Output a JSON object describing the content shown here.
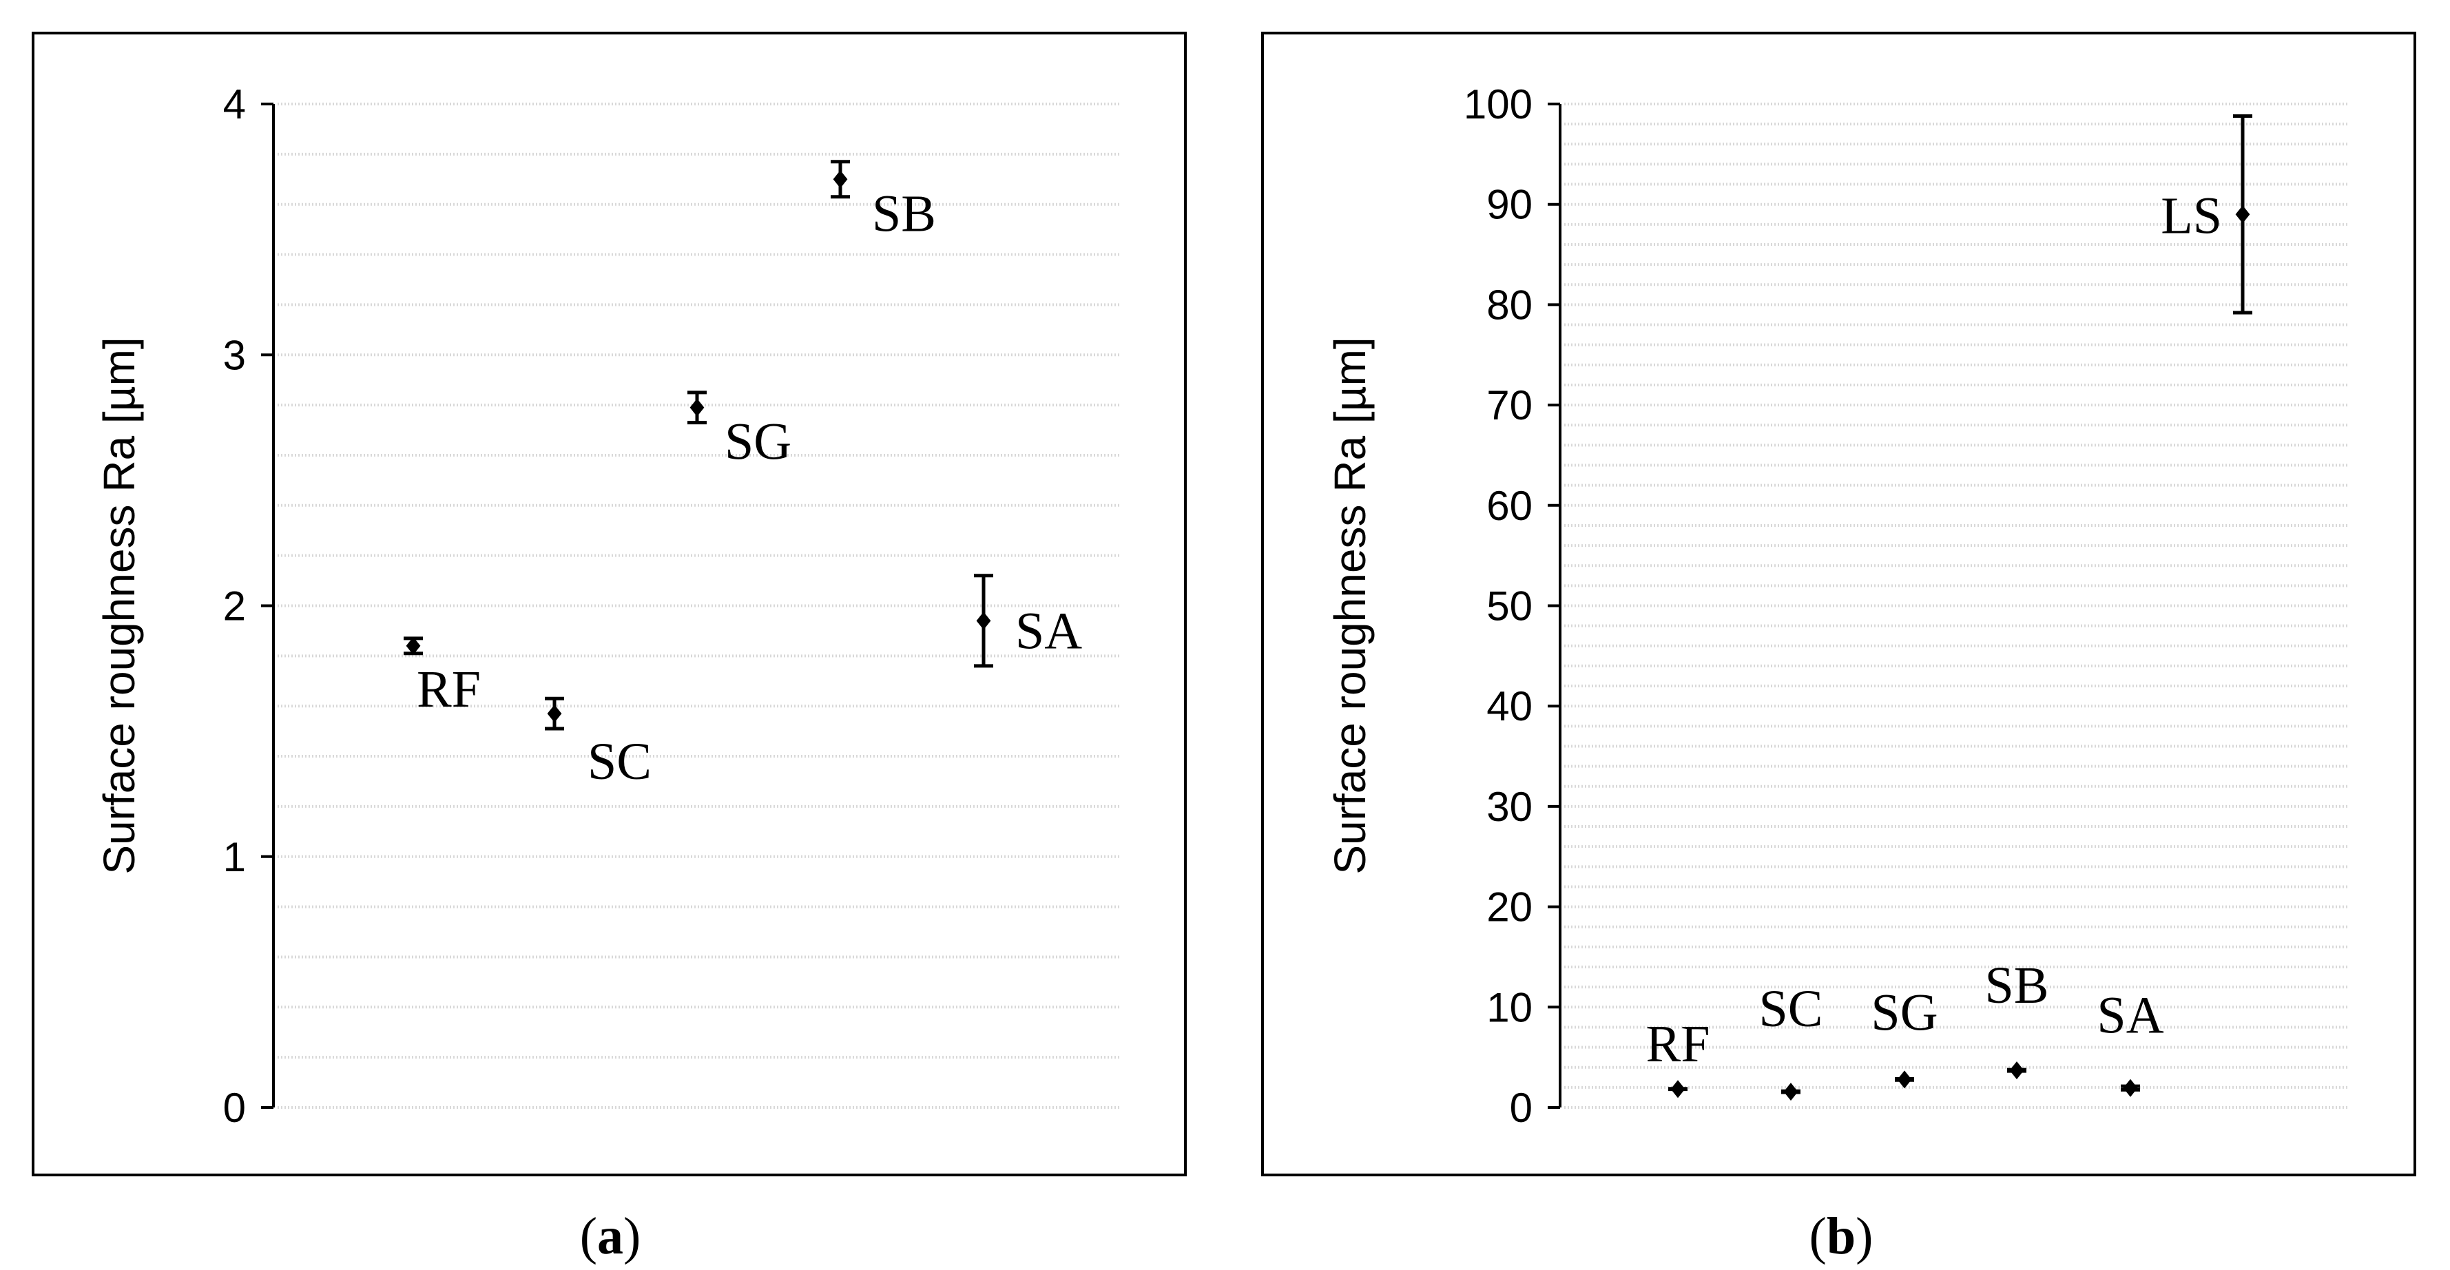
{
  "chart_data": [
    {
      "type": "scatter",
      "panel": "a",
      "caption": {
        "open": "(",
        "letter": "a",
        "close": ")"
      },
      "ylabel": "Surface roughness Ra [µm]",
      "ylim": [
        0,
        4
      ],
      "yticks": [
        "0",
        "1",
        "2",
        "3",
        "4"
      ],
      "minor_grid": true,
      "points": [
        {
          "label": "RF",
          "y": 1.84,
          "err": 0.03
        },
        {
          "label": "SC",
          "y": 1.57,
          "err": 0.06
        },
        {
          "label": "SG",
          "y": 2.79,
          "err": 0.06
        },
        {
          "label": "SB",
          "y": 3.7,
          "err": 0.07
        },
        {
          "label": "SA",
          "y": 1.94,
          "err": 0.18
        }
      ]
    },
    {
      "type": "scatter",
      "panel": "b",
      "caption": {
        "open": "(",
        "letter": "b",
        "close": ")"
      },
      "ylabel": "Surface roughness Ra [µm]",
      "ylim": [
        0,
        100
      ],
      "yticks": [
        "0",
        "10",
        "20",
        "30",
        "40",
        "50",
        "60",
        "70",
        "80",
        "90",
        "100"
      ],
      "minor_grid": true,
      "points": [
        {
          "label": "RF",
          "y": 1.84,
          "err": 0.03
        },
        {
          "label": "SC",
          "y": 1.57,
          "err": 0.06
        },
        {
          "label": "SG",
          "y": 2.79,
          "err": 0.06
        },
        {
          "label": "SB",
          "y": 3.7,
          "err": 0.07
        },
        {
          "label": "SA",
          "y": 1.94,
          "err": 0.18
        },
        {
          "label": "LS",
          "y": 89.0,
          "err": 9.8
        }
      ]
    }
  ]
}
